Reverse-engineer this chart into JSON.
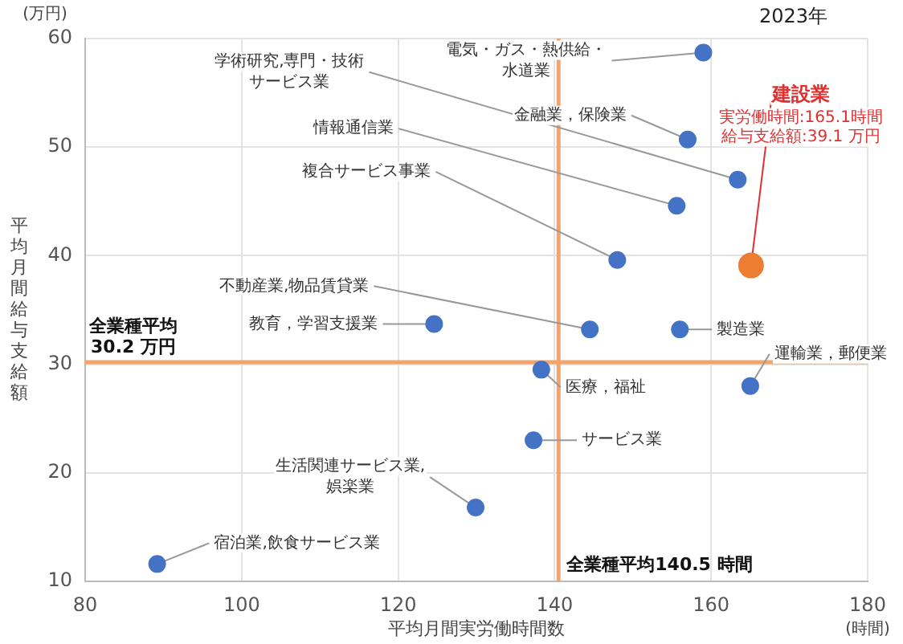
{
  "chart_data": {
    "type": "scatter",
    "title": "2023年",
    "xlabel": "平均月間実労働時間数",
    "ylabel": "平均月間給与支給額",
    "xlim": [
      80,
      180
    ],
    "xticks": [
      80,
      100,
      120,
      140,
      160,
      180
    ],
    "ylim": [
      10,
      60
    ],
    "yticks": [
      10,
      20,
      30,
      40,
      50,
      60
    ],
    "grid": true,
    "legend": false,
    "marker": "circle",
    "series": [
      {
        "color": "#4472c4",
        "x": [
          159.0,
          157.0,
          163.4,
          155.6,
          148.0,
          144.5,
          124.6,
          156.0,
          138.3,
          165.0,
          137.3,
          129.9,
          89.2
        ],
        "values": [
          58.7,
          50.7,
          47.0,
          44.6,
          39.6,
          33.2,
          33.7,
          33.2,
          29.5,
          28.0,
          23.0,
          16.8,
          11.6
        ]
      },
      {
        "color": "#ed7d31",
        "x": [
          165.1
        ],
        "values": [
          39.1
        ]
      }
    ],
    "ref_lines": [
      {
        "axis": "y",
        "value": 30.2,
        "label": "全業種平均\n30.2 万円",
        "color": "#f4a46a"
      },
      {
        "axis": "x",
        "value": 140.5,
        "label": "全業種平均140.5 時間",
        "color": "#f4a46a"
      }
    ],
    "annotations": [
      "(万円)",
      "(時間)",
      {
        "text": "電気・ガス・熱供給・水道業",
        "x": 159.0,
        "y": 58.7
      },
      {
        "text": "金融業，保険業",
        "x": 157.0,
        "y": 50.7
      },
      {
        "text": "学術研究,専門・技術サービス業",
        "x": 163.4,
        "y": 47.0
      },
      {
        "text": "情報通信業",
        "x": 155.6,
        "y": 44.6
      },
      {
        "text": "複合サービス事業",
        "x": 148.0,
        "y": 39.6
      },
      {
        "text": "不動産業,物品賃貸業",
        "x": 144.5,
        "y": 33.2
      },
      {
        "text": "教育，学習支援業",
        "x": 124.6,
        "y": 33.7
      },
      {
        "text": "製造業",
        "x": 156.0,
        "y": 33.2
      },
      {
        "text": "医療，福祉",
        "x": 138.3,
        "y": 29.5
      },
      {
        "text": "運輸業，郵便業",
        "x": 165.0,
        "y": 28.0
      },
      {
        "text": "サービス業",
        "x": 137.3,
        "y": 23.0
      },
      {
        "text": "生活関連サービス業,娯楽業",
        "x": 129.9,
        "y": 16.8
      },
      {
        "text": "宿泊業,飲食サービス業",
        "x": 89.2,
        "y": 11.6
      },
      {
        "text": "建設業",
        "x": 165.1,
        "y": 39.1
      },
      "実労働時間:165.1時間",
      "給与支給額:39.1 万円"
    ]
  }
}
